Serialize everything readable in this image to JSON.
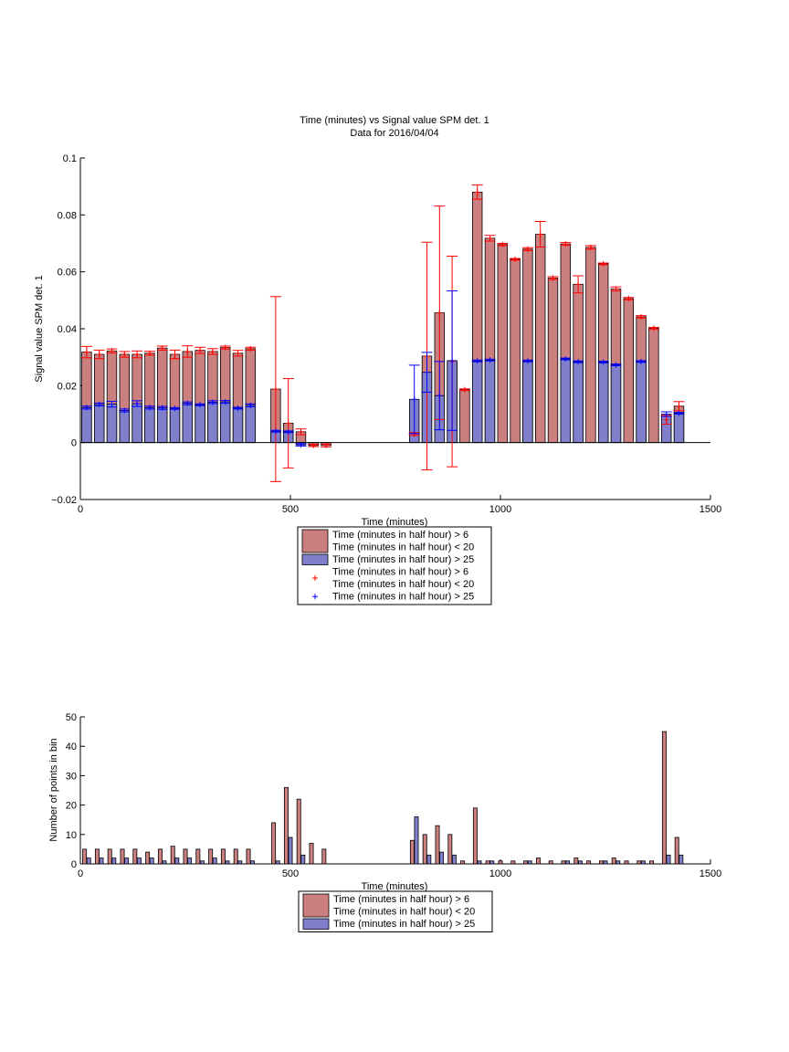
{
  "chart_data": [
    {
      "type": "bar",
      "title": "Time (minutes) vs Signal value SPM det. 1",
      "subtitle": "Data for 2016/04/04",
      "xlabel": "Time (minutes)",
      "ylabel": "Signal value SPM det. 1",
      "xlim": [
        0,
        1500
      ],
      "ylim": [
        -0.02,
        0.1
      ],
      "xticks": [
        0,
        500,
        1000,
        1500
      ],
      "xtick_labels": [
        "0",
        "500",
        "1000",
        "1500"
      ],
      "yticks": [
        -0.02,
        0,
        0.02,
        0.04,
        0.06,
        0.08,
        0.1
      ],
      "ytick_labels": [
        "−0.02",
        "0",
        "0.02",
        "0.04",
        "0.06",
        "0.08",
        "0.1"
      ],
      "legend_position": "below",
      "legend": [
        {
          "label": "Time (minutes in half hour) > 6",
          "label2": "Time (minutes in half hour) < 20",
          "kind": "bar",
          "color": "#cc7f7f"
        },
        {
          "label": "Time (minutes in half hour) > 25",
          "kind": "bar",
          "color": "#7f7fcc"
        },
        {
          "label": "Time (minutes in half hour) > 6",
          "label2": "Time (minutes in half hour) < 20",
          "kind": "marker",
          "color": "#ff0000"
        },
        {
          "label": "Time (minutes in half hour) > 25",
          "kind": "marker",
          "color": "#0000ff"
        }
      ],
      "series": [
        {
          "color": "#cc7f7f",
          "error_color": "#ff0000",
          "x": [
            15,
            45,
            75,
            105,
            135,
            165,
            195,
            225,
            255,
            285,
            315,
            345,
            375,
            405,
            465,
            495,
            525,
            555,
            585,
            795,
            825,
            855,
            885,
            915,
            945,
            975,
            1005,
            1035,
            1065,
            1095,
            1125,
            1155,
            1185,
            1215,
            1245,
            1275,
            1305,
            1335,
            1365,
            1395,
            1425
          ],
          "values": [
            0.0318,
            0.031,
            0.0322,
            0.031,
            0.031,
            0.0314,
            0.0332,
            0.031,
            0.032,
            0.0324,
            0.032,
            0.0334,
            0.0314,
            0.033,
            0.0188,
            0.0068,
            0.0038,
            -0.001,
            -0.001,
            0.003,
            0.0304,
            0.0456,
            0.0285,
            0.0186,
            0.088,
            0.0718,
            0.0696,
            0.0644,
            0.068,
            0.0732,
            0.0578,
            0.0698,
            0.0556,
            0.0686,
            0.0628,
            0.054,
            0.0506,
            0.0442,
            0.0402,
            0.008,
            0.0128
          ],
          "err": [
            0.002,
            0.0015,
            0.0007,
            0.001,
            0.0012,
            0.0007,
            0.0007,
            0.0015,
            0.002,
            0.0011,
            0.001,
            0.0005,
            0.001,
            0.0005,
            0.0325,
            0.0157,
            0.001,
            0.0004,
            0.0005,
            0.0005,
            0.04,
            0.0375,
            0.037,
            0.0003,
            0.0025,
            0.001,
            0.0004,
            0.0003,
            0.0005,
            0.0045,
            0.0005,
            0.0005,
            0.003,
            0.0006,
            0.0003,
            0.0007,
            0.0004,
            0.0004,
            0.0003,
            0.0015,
            0.0016
          ]
        },
        {
          "color": "#7f7fcc",
          "error_color": "#0000ff",
          "x": [
            15,
            45,
            75,
            105,
            135,
            165,
            195,
            225,
            255,
            285,
            315,
            345,
            375,
            405,
            465,
            495,
            525,
            795,
            825,
            855,
            885,
            945,
            975,
            1065,
            1155,
            1185,
            1245,
            1275,
            1335,
            1395,
            1425
          ],
          "values": [
            0.0123,
            0.0134,
            0.0135,
            0.0113,
            0.0137,
            0.0123,
            0.0122,
            0.012,
            0.0138,
            0.0133,
            0.0142,
            0.0143,
            0.0121,
            0.0131,
            0.004,
            0.0038,
            -0.0008,
            0.0152,
            0.0247,
            0.0165,
            0.0288,
            0.0287,
            0.029,
            0.0287,
            0.0294,
            0.0284,
            0.0283,
            0.0273,
            0.0285,
            0.01,
            0.0103
          ],
          "err": [
            0.0005,
            0.0005,
            0.001,
            0.0005,
            0.001,
            0.0005,
            0.0005,
            0.0003,
            0.0005,
            0.0003,
            0.0005,
            0.0005,
            0.0003,
            0.0005,
            0.0003,
            0.0003,
            0.0004,
            0.012,
            0.007,
            0.012,
            0.0245,
            0.0003,
            0.0003,
            0.0003,
            0.0003,
            0.0003,
            0.0003,
            0.0003,
            0.0003,
            0.0008,
            0.0003
          ]
        }
      ]
    },
    {
      "type": "bar",
      "xlabel": "Time (minutes)",
      "ylabel": "Number of points in bin",
      "xlim": [
        0,
        1500
      ],
      "ylim": [
        0,
        50
      ],
      "xticks": [
        0,
        500,
        1000,
        1500
      ],
      "xtick_labels": [
        "0",
        "500",
        "1000",
        "1500"
      ],
      "yticks": [
        0,
        10,
        20,
        30,
        40,
        50
      ],
      "ytick_labels": [
        "0",
        "10",
        "20",
        "30",
        "40",
        "50"
      ],
      "legend_position": "below",
      "legend": [
        {
          "label": "Time (minutes in half hour) > 6",
          "label2": "Time (minutes in half hour) < 20",
          "kind": "bar",
          "color": "#cc7f7f"
        },
        {
          "label": "Time (minutes in half hour) > 25",
          "kind": "bar",
          "color": "#7f7fcc"
        }
      ],
      "series": [
        {
          "color": "#cc7f7f",
          "x": [
            15,
            45,
            75,
            105,
            135,
            165,
            195,
            225,
            255,
            285,
            315,
            345,
            375,
            405,
            465,
            495,
            525,
            555,
            585,
            795,
            825,
            855,
            885,
            915,
            945,
            975,
            1005,
            1035,
            1065,
            1095,
            1125,
            1155,
            1185,
            1215,
            1245,
            1275,
            1305,
            1335,
            1365,
            1395,
            1425
          ],
          "values": [
            5,
            5,
            5,
            5,
            5,
            4,
            5,
            6,
            5,
            5,
            5,
            5,
            5,
            5,
            14,
            26,
            22,
            7,
            5,
            8,
            10,
            13,
            10,
            1,
            19,
            1,
            1,
            1,
            1,
            2,
            1,
            1,
            2,
            1,
            1,
            2,
            1,
            1,
            1,
            45,
            9
          ]
        },
        {
          "color": "#7f7fcc",
          "x": [
            15,
            45,
            75,
            105,
            135,
            165,
            195,
            225,
            255,
            285,
            315,
            345,
            375,
            405,
            465,
            495,
            525,
            795,
            825,
            855,
            885,
            945,
            975,
            1065,
            1155,
            1185,
            1245,
            1275,
            1335,
            1395,
            1425
          ],
          "values": [
            2,
            2,
            2,
            2,
            2,
            2,
            1,
            2,
            2,
            1,
            2,
            1,
            1,
            1,
            1,
            9,
            3,
            16,
            3,
            4,
            3,
            1,
            1,
            1,
            1,
            1,
            1,
            1,
            1,
            3,
            3
          ]
        }
      ]
    }
  ]
}
